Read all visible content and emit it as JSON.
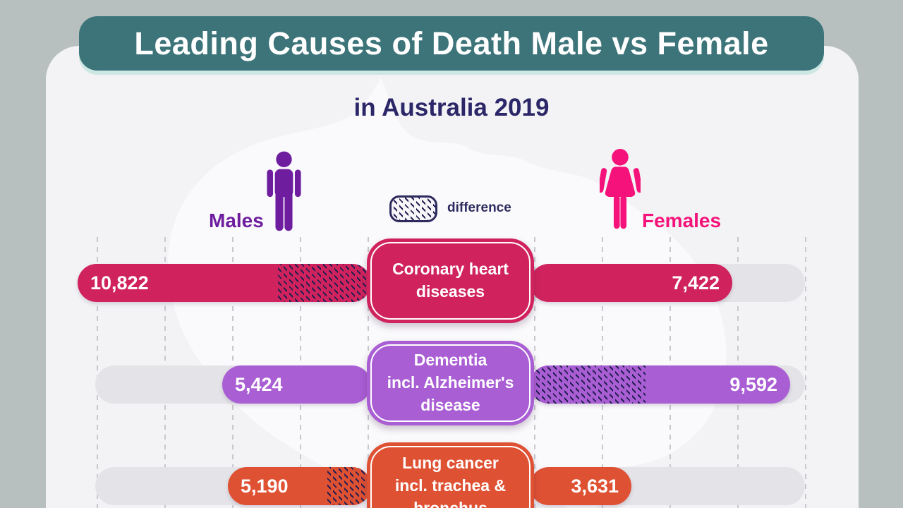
{
  "header": {
    "title": "Leading Causes of Death Male vs Female",
    "subtitle": "in Australia 2019"
  },
  "legend": {
    "males": "Males",
    "females": "Females",
    "difference": "difference"
  },
  "colors": {
    "outer_background": "#b7c0bf",
    "panel_background": "#f3f3f5",
    "banner_teal": "#3c747a",
    "banner_text": "#ffffff",
    "subtitle_text": "#2b2768",
    "male_purple": "#6e1d9f",
    "female_pink": "#f5127a",
    "legend_navy": "#2e2a5e",
    "hatch_dark": "#241f52",
    "track_gray": "#e4e4e8",
    "row_coronary": "#d0235d",
    "row_dementia": "#a95ed4",
    "row_lung_cancer": "#df5133"
  },
  "chart_data": {
    "type": "bar",
    "orientation": "diverging_horizontal",
    "title": "Leading Causes of Death Male vs Female",
    "subtitle": "in Australia 2019",
    "series": [
      "Males",
      "Females"
    ],
    "legend_note": "hatched area = difference between male and female deaths",
    "rows": [
      {
        "category": "Coronary heart diseases",
        "category_lines": [
          "Coronary heart",
          "diseases"
        ],
        "male": 10822,
        "female": 7422,
        "difference": 3400,
        "male_label": "10,822",
        "female_label": "7,422",
        "color": "#d0235d"
      },
      {
        "category": "Dementia incl. Alzheimer's disease",
        "category_lines": [
          "Dementia",
          "incl. Alzheimer's",
          "disease"
        ],
        "male": 5424,
        "female": 9592,
        "difference": 4168,
        "male_label": "5,424",
        "female_label": "9,592",
        "color": "#a95ed4"
      },
      {
        "category": "Lung cancer incl. trachea & bronchus",
        "category_lines": [
          "Lung cancer",
          "incl. trachea &",
          "bronchus"
        ],
        "male": 5190,
        "female": 3631,
        "difference": 1559,
        "male_label": "5,190",
        "female_label": "3,631",
        "color": "#df5133"
      }
    ]
  }
}
